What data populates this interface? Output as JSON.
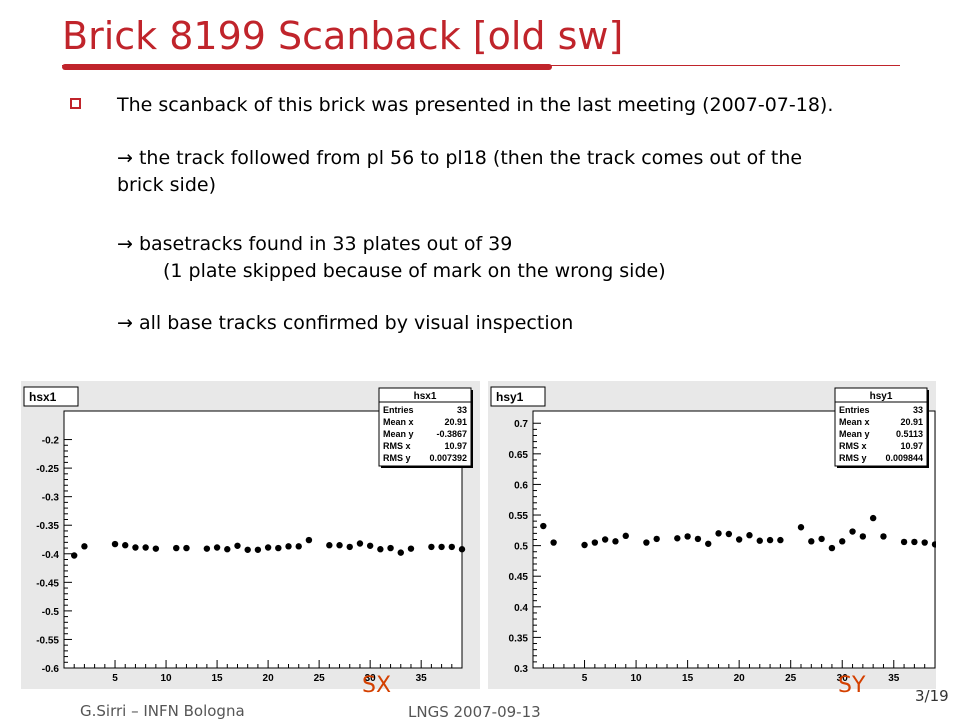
{
  "slide": {
    "title": "Brick 8199 Scanback [old sw]",
    "bullet_main": "The scanback of this brick was presented in the last meeting (2007-07-18).",
    "arrow1_line1": "→ the track followed from pl 56 to pl18 (then the track comes out of the",
    "arrow1_line2": "brick side)",
    "arrow2_line1": "→ basetracks found in 33 plates out of 39",
    "arrow2_line2": "(1 plate skipped because of mark on the wrong side)",
    "arrow3": "→ all base tracks confirmed by visual inspection",
    "label_left": "SX",
    "label_right": "SY",
    "footer_left": "G.Sirri – INFN Bologna",
    "footer_center": "LNGS 2007-09-13",
    "page_number": "3/19"
  },
  "colors": {
    "accent": "#c0242b",
    "plot_label": "#d44000",
    "panel_bg": "#e8e8e8"
  },
  "chart_data": [
    {
      "type": "scatter",
      "name": "hsx1",
      "title": "hsx1",
      "xlabel": "",
      "ylabel": "",
      "xlim": [
        0,
        39
      ],
      "ylim": [
        -0.6,
        -0.15
      ],
      "xticks": [
        5,
        10,
        15,
        20,
        25,
        30,
        35
      ],
      "yticks": [
        -0.6,
        -0.55,
        -0.5,
        -0.45,
        -0.4,
        -0.35,
        -0.3,
        -0.25,
        -0.2
      ],
      "ytick_labels": [
        "-0.6",
        "-0.55",
        "-0.5",
        "-0.45",
        "-0.4",
        "-0.35",
        "-0.3",
        "-0.25",
        "-0.2"
      ],
      "stats": {
        "title": "hsx1",
        "rows": [
          [
            "Entries",
            "33"
          ],
          [
            "Mean x",
            "20.91"
          ],
          [
            "Mean y",
            "-0.3867"
          ],
          [
            "RMS x",
            "10.97"
          ],
          [
            "RMS y",
            "0.007392"
          ]
        ]
      },
      "points": [
        [
          1,
          -0.403
        ],
        [
          2,
          -0.387
        ],
        [
          5,
          -0.383
        ],
        [
          6,
          -0.385
        ],
        [
          7,
          -0.389
        ],
        [
          8,
          -0.389
        ],
        [
          9,
          -0.391
        ],
        [
          11,
          -0.39
        ],
        [
          12,
          -0.39
        ],
        [
          14,
          -0.391
        ],
        [
          15,
          -0.389
        ],
        [
          16,
          -0.392
        ],
        [
          17,
          -0.386
        ],
        [
          18,
          -0.393
        ],
        [
          19,
          -0.393
        ],
        [
          20,
          -0.389
        ],
        [
          21,
          -0.39
        ],
        [
          22,
          -0.387
        ],
        [
          23,
          -0.387
        ],
        [
          24,
          -0.376
        ],
        [
          26,
          -0.385
        ],
        [
          27,
          -0.385
        ],
        [
          28,
          -0.388
        ],
        [
          29,
          -0.382
        ],
        [
          30,
          -0.386
        ],
        [
          31,
          -0.392
        ],
        [
          32,
          -0.39
        ],
        [
          33,
          -0.398
        ],
        [
          34,
          -0.391
        ],
        [
          36,
          -0.388
        ],
        [
          37,
          -0.388
        ],
        [
          38,
          -0.388
        ],
        [
          39,
          -0.392
        ]
      ]
    },
    {
      "type": "scatter",
      "name": "hsy1",
      "title": "hsy1",
      "xlabel": "",
      "ylabel": "",
      "xlim": [
        0,
        39
      ],
      "ylim": [
        0.3,
        0.72
      ],
      "xticks": [
        5,
        10,
        15,
        20,
        25,
        30,
        35
      ],
      "yticks": [
        0.3,
        0.35,
        0.4,
        0.45,
        0.5,
        0.55,
        0.6,
        0.65,
        0.7
      ],
      "ytick_labels": [
        "0.3",
        "0.35",
        "0.4",
        "0.45",
        "0.5",
        "0.55",
        "0.6",
        "0.65",
        "0.7"
      ],
      "stats": {
        "title": "hsy1",
        "rows": [
          [
            "Entries",
            "33"
          ],
          [
            "Mean x",
            "20.91"
          ],
          [
            "Mean y",
            "0.5113"
          ],
          [
            "RMS x",
            "10.97"
          ],
          [
            "RMS y",
            "0.009844"
          ]
        ]
      },
      "points": [
        [
          1,
          0.532
        ],
        [
          2,
          0.505
        ],
        [
          5,
          0.501
        ],
        [
          6,
          0.505
        ],
        [
          7,
          0.51
        ],
        [
          8,
          0.507
        ],
        [
          9,
          0.516
        ],
        [
          11,
          0.505
        ],
        [
          12,
          0.511
        ],
        [
          14,
          0.512
        ],
        [
          15,
          0.515
        ],
        [
          16,
          0.511
        ],
        [
          17,
          0.503
        ],
        [
          18,
          0.52
        ],
        [
          19,
          0.519
        ],
        [
          20,
          0.51
        ],
        [
          21,
          0.517
        ],
        [
          22,
          0.508
        ],
        [
          23,
          0.509
        ],
        [
          24,
          0.509
        ],
        [
          26,
          0.53
        ],
        [
          27,
          0.507
        ],
        [
          28,
          0.511
        ],
        [
          29,
          0.496
        ],
        [
          30,
          0.507
        ],
        [
          31,
          0.523
        ],
        [
          32,
          0.515
        ],
        [
          33,
          0.545
        ],
        [
          34,
          0.515
        ],
        [
          36,
          0.506
        ],
        [
          37,
          0.506
        ],
        [
          38,
          0.505
        ],
        [
          39,
          0.502
        ]
      ]
    }
  ]
}
